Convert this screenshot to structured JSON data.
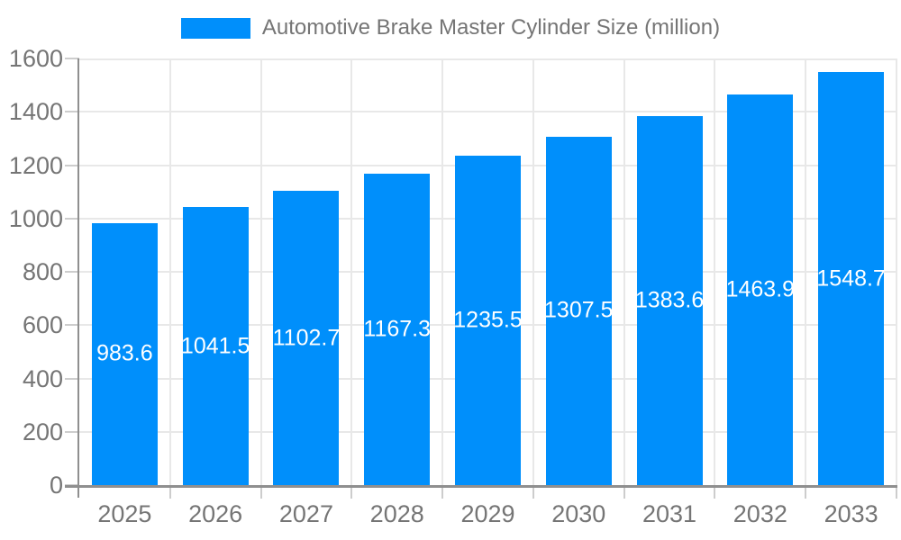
{
  "chart_data": {
    "type": "bar",
    "title": "Automotive Brake Master Cylinder Size (million)",
    "series_name": "Automotive Brake Master Cylinder Size (million)",
    "categories": [
      "2025",
      "2026",
      "2027",
      "2028",
      "2029",
      "2030",
      "2031",
      "2032",
      "2033"
    ],
    "values": [
      983.6,
      1041.5,
      1102.7,
      1167.3,
      1235.5,
      1307.5,
      1383.6,
      1463.9,
      1548.7
    ],
    "value_labels": [
      "983.6",
      "1041.5",
      "1102.7",
      "1167.3",
      "1235.5",
      "1307.5",
      "1383.6",
      "1463.9",
      "1548.7"
    ],
    "xlabel": "",
    "ylabel": "",
    "ylim": [
      0,
      1600
    ],
    "yticks": [
      0,
      200,
      400,
      600,
      800,
      1000,
      1200,
      1400,
      1600
    ],
    "grid": "both",
    "legend_position": "top",
    "bar_label_position": "inside-center"
  },
  "colors": {
    "bar": "#008FFB",
    "bar_label": "#FFFFFF",
    "axis_label": "#757575",
    "legend_label": "#757575",
    "grid_line": "#E8E8E8",
    "axis_line": "#8F8F8F",
    "tick": "#CDCDCD",
    "background": "#FFFFFF"
  }
}
